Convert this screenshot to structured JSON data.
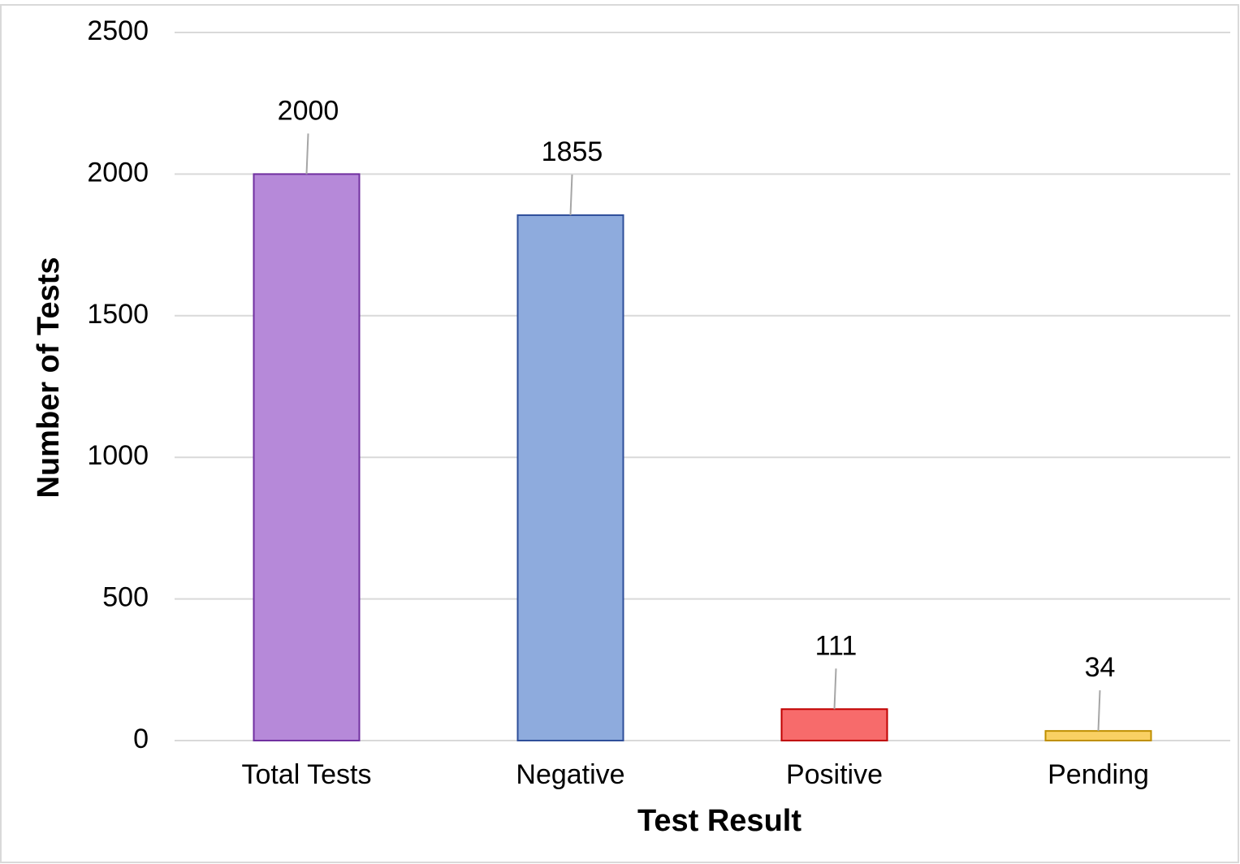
{
  "chart_data": {
    "type": "bar",
    "x_label": "Test Result",
    "y_label": "Number of Tests",
    "categories": [
      "Total Tests",
      "Negative",
      "Positive",
      "Pending"
    ],
    "values": [
      2000,
      1855,
      111,
      34
    ],
    "colors": [
      "#b689d9",
      "#8eabdd",
      "#f76b6b",
      "#f9d063"
    ],
    "edge_colors": [
      "#7030a0",
      "#2f4f9a",
      "#c00000",
      "#bf8f00"
    ],
    "ylim": [
      0,
      2500
    ],
    "yticks": [
      0,
      500,
      1000,
      1500,
      2000,
      2500
    ],
    "grid": true
  }
}
